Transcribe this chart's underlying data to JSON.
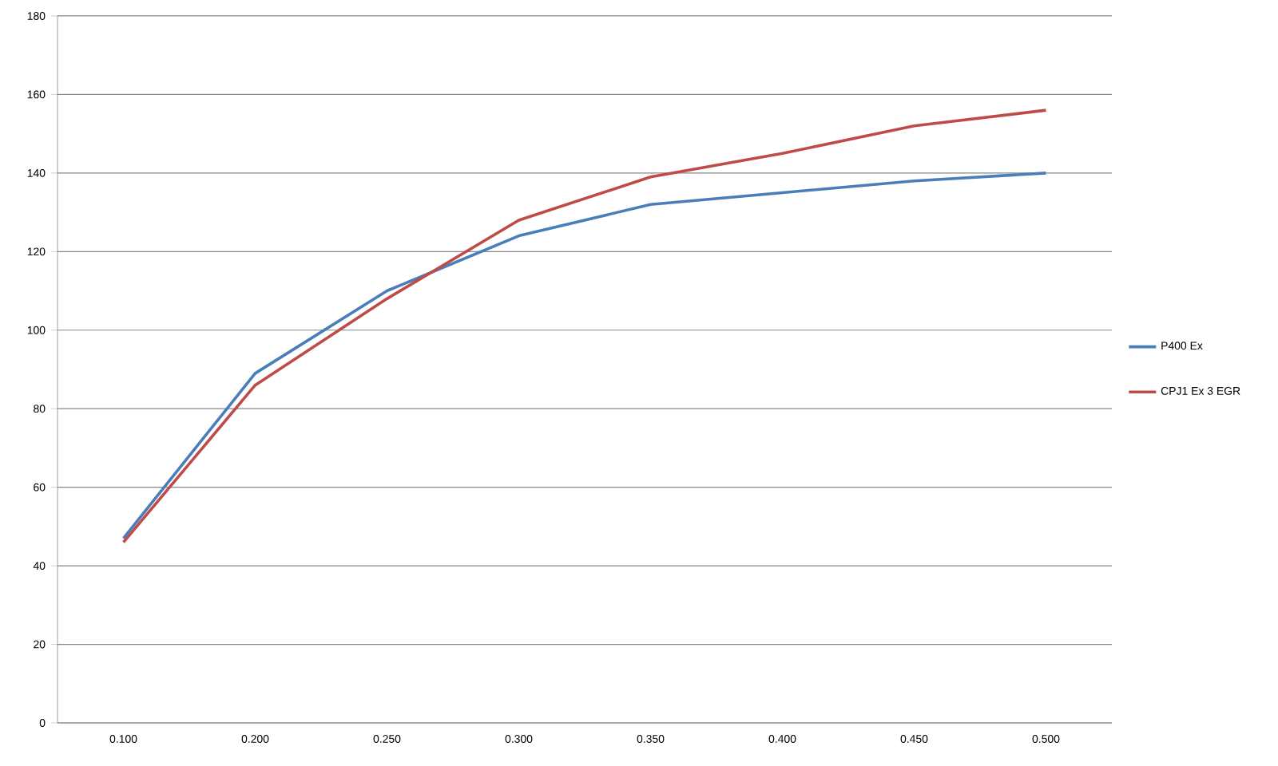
{
  "chart_data": {
    "type": "line",
    "categories": [
      "0.100",
      "0.200",
      "0.250",
      "0.300",
      "0.350",
      "0.400",
      "0.450",
      "0.500"
    ],
    "series": [
      {
        "name": "P400 Ex",
        "color": "#4a7ebb",
        "values": [
          47,
          89,
          110,
          124,
          132,
          135,
          138,
          140
        ]
      },
      {
        "name": "CPJ1 Ex 3 EGR",
        "color": "#be4b48",
        "values": [
          46,
          86,
          108,
          128,
          139,
          145,
          152,
          156
        ]
      }
    ],
    "ylim": [
      0,
      180
    ],
    "yticks": [
      0,
      20,
      40,
      60,
      80,
      100,
      120,
      140,
      160,
      180
    ],
    "grid": "y",
    "legend": "right",
    "marker": "none",
    "line_style": "solid"
  }
}
